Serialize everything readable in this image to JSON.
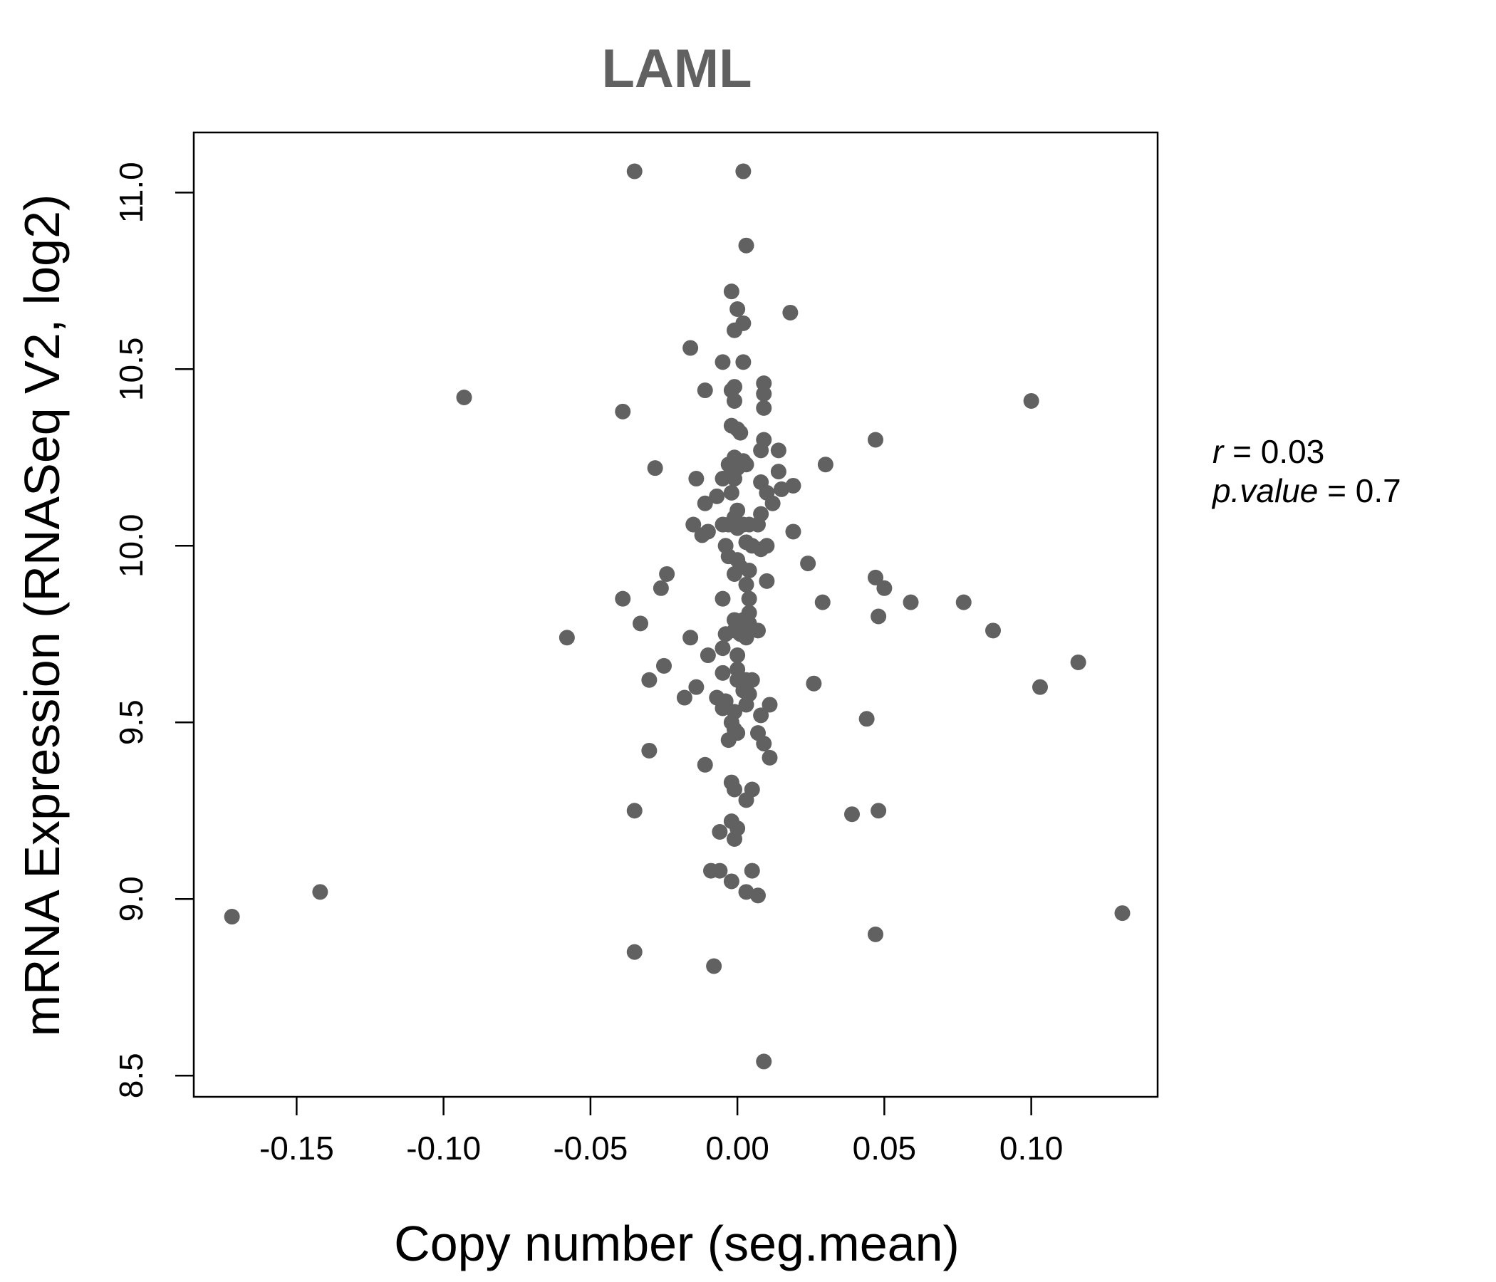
{
  "chart_data": {
    "type": "scatter",
    "title": "LAML",
    "xlabel": "Copy number (seg.mean)",
    "ylabel": "mRNA Expression (RNASeq V2, log2)",
    "xlim": [
      -0.185,
      0.143
    ],
    "ylim": [
      8.44,
      11.17
    ],
    "xticks": [
      -0.15,
      -0.1,
      -0.05,
      0.0,
      0.05,
      0.1
    ],
    "xtick_labels": [
      "-0.15",
      "-0.10",
      "-0.05",
      "0.00",
      "0.05",
      "0.10"
    ],
    "yticks": [
      8.5,
      9.0,
      9.5,
      10.0,
      10.5,
      11.0
    ],
    "ytick_labels": [
      "8.5",
      "9.0",
      "9.5",
      "10.0",
      "10.5",
      "11.0"
    ],
    "point_color": "#616161",
    "stats": {
      "r_label": "r",
      "r_value": "0.03",
      "p_label": "p.value",
      "p_value": "0.7"
    },
    "points": [
      [
        -0.035,
        11.06
      ],
      [
        0.002,
        11.06
      ],
      [
        0.003,
        10.85
      ],
      [
        -0.002,
        10.72
      ],
      [
        0.0,
        10.67
      ],
      [
        0.002,
        10.63
      ],
      [
        -0.001,
        10.61
      ],
      [
        0.018,
        10.66
      ],
      [
        -0.016,
        10.56
      ],
      [
        -0.005,
        10.52
      ],
      [
        0.002,
        10.52
      ],
      [
        0.009,
        10.46
      ],
      [
        -0.011,
        10.44
      ],
      [
        -0.001,
        10.45
      ],
      [
        -0.002,
        10.44
      ],
      [
        0.009,
        10.43
      ],
      [
        -0.001,
        10.41
      ],
      [
        0.009,
        10.39
      ],
      [
        -0.093,
        10.42
      ],
      [
        0.1,
        10.41
      ],
      [
        -0.039,
        10.38
      ],
      [
        -0.002,
        10.34
      ],
      [
        0.0,
        10.33
      ],
      [
        0.001,
        10.32
      ],
      [
        0.009,
        10.3
      ],
      [
        0.047,
        10.3
      ],
      [
        0.008,
        10.27
      ],
      [
        0.014,
        10.27
      ],
      [
        -0.001,
        10.25
      ],
      [
        0.002,
        10.24
      ],
      [
        0.003,
        10.23
      ],
      [
        0.03,
        10.23
      ],
      [
        -0.028,
        10.22
      ],
      [
        -0.003,
        10.23
      ],
      [
        0.0,
        10.22
      ],
      [
        0.014,
        10.21
      ],
      [
        -0.002,
        10.21
      ],
      [
        -0.014,
        10.19
      ],
      [
        -0.005,
        10.19
      ],
      [
        -0.001,
        10.19
      ],
      [
        0.008,
        10.18
      ],
      [
        0.019,
        10.17
      ],
      [
        0.015,
        10.16
      ],
      [
        -0.002,
        10.15
      ],
      [
        0.01,
        10.15
      ],
      [
        -0.007,
        10.14
      ],
      [
        -0.011,
        10.12
      ],
      [
        0.012,
        10.12
      ],
      [
        0.0,
        10.1
      ],
      [
        0.008,
        10.09
      ],
      [
        -0.001,
        10.08
      ],
      [
        0.002,
        10.06
      ],
      [
        0.007,
        10.06
      ],
      [
        -0.015,
        10.06
      ],
      [
        -0.005,
        10.06
      ],
      [
        -0.003,
        10.06
      ],
      [
        0.004,
        10.06
      ],
      [
        0.0,
        10.05
      ],
      [
        -0.01,
        10.04
      ],
      [
        0.019,
        10.04
      ],
      [
        -0.012,
        10.03
      ],
      [
        0.003,
        10.01
      ],
      [
        0.01,
        10.0
      ],
      [
        -0.004,
        10.0
      ],
      [
        0.005,
        10.0
      ],
      [
        0.008,
        9.99
      ],
      [
        -0.003,
        9.97
      ],
      [
        0.0,
        9.96
      ],
      [
        0.001,
        9.94
      ],
      [
        0.024,
        9.95
      ],
      [
        0.004,
        9.93
      ],
      [
        -0.001,
        9.92
      ],
      [
        -0.024,
        9.92
      ],
      [
        0.047,
        9.91
      ],
      [
        0.01,
        9.9
      ],
      [
        0.003,
        9.89
      ],
      [
        0.05,
        9.88
      ],
      [
        -0.026,
        9.88
      ],
      [
        -0.039,
        9.85
      ],
      [
        -0.005,
        9.85
      ],
      [
        0.004,
        9.85
      ],
      [
        0.029,
        9.84
      ],
      [
        0.059,
        9.84
      ],
      [
        0.077,
        9.84
      ],
      [
        0.004,
        9.81
      ],
      [
        0.048,
        9.8
      ],
      [
        -0.001,
        9.79
      ],
      [
        0.002,
        9.79
      ],
      [
        0.004,
        9.78
      ],
      [
        -0.033,
        9.78
      ],
      [
        0.001,
        9.77
      ],
      [
        0.007,
        9.76
      ],
      [
        0.087,
        9.76
      ],
      [
        -0.001,
        9.76
      ],
      [
        0.001,
        9.75
      ],
      [
        -0.004,
        9.75
      ],
      [
        0.003,
        9.74
      ],
      [
        -0.016,
        9.74
      ],
      [
        -0.058,
        9.74
      ],
      [
        -0.005,
        9.71
      ],
      [
        0.0,
        9.69
      ],
      [
        -0.01,
        9.69
      ],
      [
        0.116,
        9.67
      ],
      [
        -0.025,
        9.66
      ],
      [
        0.0,
        9.65
      ],
      [
        -0.005,
        9.64
      ],
      [
        0.0,
        9.62
      ],
      [
        0.003,
        9.62
      ],
      [
        0.005,
        9.62
      ],
      [
        -0.03,
        9.62
      ],
      [
        0.026,
        9.61
      ],
      [
        0.103,
        9.6
      ],
      [
        -0.014,
        9.6
      ],
      [
        0.002,
        9.59
      ],
      [
        0.004,
        9.58
      ],
      [
        -0.018,
        9.57
      ],
      [
        -0.007,
        9.57
      ],
      [
        -0.004,
        9.56
      ],
      [
        0.011,
        9.55
      ],
      [
        0.003,
        9.55
      ],
      [
        -0.005,
        9.54
      ],
      [
        -0.001,
        9.53
      ],
      [
        0.008,
        9.52
      ],
      [
        0.044,
        9.51
      ],
      [
        -0.002,
        9.5
      ],
      [
        -0.001,
        9.48
      ],
      [
        0.0,
        9.47
      ],
      [
        0.007,
        9.47
      ],
      [
        -0.003,
        9.45
      ],
      [
        0.009,
        9.44
      ],
      [
        -0.03,
        9.42
      ],
      [
        0.011,
        9.4
      ],
      [
        -0.011,
        9.38
      ],
      [
        -0.002,
        9.33
      ],
      [
        -0.001,
        9.31
      ],
      [
        0.005,
        9.31
      ],
      [
        0.003,
        9.28
      ],
      [
        0.048,
        9.25
      ],
      [
        -0.035,
        9.25
      ],
      [
        0.039,
        9.24
      ],
      [
        -0.002,
        9.22
      ],
      [
        0.0,
        9.2
      ],
      [
        -0.006,
        9.19
      ],
      [
        -0.001,
        9.17
      ],
      [
        -0.009,
        9.08
      ],
      [
        0.005,
        9.08
      ],
      [
        -0.006,
        9.08
      ],
      [
        -0.002,
        9.05
      ],
      [
        0.003,
        9.02
      ],
      [
        -0.142,
        9.02
      ],
      [
        0.007,
        9.01
      ],
      [
        -0.172,
        8.95
      ],
      [
        0.131,
        8.96
      ],
      [
        0.047,
        8.9
      ],
      [
        -0.035,
        8.85
      ],
      [
        -0.008,
        8.81
      ],
      [
        0.009,
        8.54
      ]
    ]
  }
}
